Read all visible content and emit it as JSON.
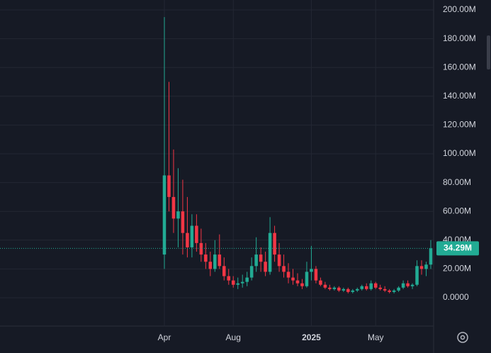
{
  "chart_data": {
    "type": "candlestick",
    "categories": [
      "Apr",
      null,
      null,
      null,
      null,
      null,
      null,
      null,
      null,
      null,
      null,
      null,
      null,
      null,
      null,
      "Aug",
      null,
      null,
      null,
      null,
      null,
      null,
      null,
      null,
      null,
      null,
      null,
      null,
      null,
      null,
      null,
      null,
      "2025",
      null,
      null,
      null,
      null,
      null,
      null,
      null,
      null,
      null,
      null,
      null,
      null,
      null,
      "May",
      null,
      null,
      null,
      null,
      null,
      null,
      null,
      null,
      null,
      null,
      null,
      null
    ],
    "open": [
      30,
      85,
      70,
      55,
      60,
      45,
      35,
      50,
      38,
      30,
      25,
      20,
      30,
      22,
      15,
      12,
      9,
      10,
      11,
      14,
      22,
      30,
      25,
      18,
      45,
      30,
      22,
      18,
      14,
      12,
      10,
      8,
      18,
      20,
      12,
      9,
      7,
      6,
      7,
      5,
      6,
      4,
      5,
      6,
      8,
      6,
      10,
      7,
      6,
      5,
      4,
      5,
      7,
      10,
      8,
      9,
      22,
      20,
      23
    ],
    "high": [
      195,
      150,
      103,
      90,
      82,
      70,
      58,
      58,
      48,
      38,
      32,
      40,
      44,
      28,
      20,
      15,
      14,
      16,
      18,
      28,
      42,
      35,
      32,
      56,
      50,
      38,
      30,
      24,
      20,
      17,
      13,
      25,
      36,
      22,
      14,
      11,
      9,
      8,
      8,
      7,
      7,
      6,
      7,
      9,
      10,
      12,
      11,
      9,
      8,
      6,
      6,
      8,
      12,
      12,
      10,
      26,
      26,
      25,
      40
    ],
    "low": [
      20,
      60,
      45,
      35,
      30,
      28,
      28,
      32,
      25,
      20,
      15,
      18,
      20,
      12,
      9,
      7,
      6,
      7,
      8,
      12,
      18,
      18,
      15,
      16,
      25,
      18,
      14,
      10,
      9,
      8,
      6,
      7,
      12,
      10,
      8,
      6,
      5,
      5,
      4,
      4,
      3,
      3,
      4,
      5,
      5,
      5,
      6,
      5,
      4,
      3,
      3,
      4,
      6,
      7,
      6,
      8,
      16,
      15,
      20
    ],
    "close": [
      85,
      70,
      55,
      60,
      45,
      35,
      50,
      38,
      30,
      25,
      20,
      30,
      22,
      15,
      12,
      9,
      10,
      11,
      14,
      22,
      30,
      25,
      18,
      45,
      30,
      22,
      18,
      14,
      12,
      10,
      8,
      18,
      20,
      12,
      9,
      7,
      6,
      7,
      5,
      6,
      4,
      5,
      6,
      8,
      6,
      10,
      7,
      6,
      5,
      4,
      5,
      7,
      10,
      8,
      9,
      22,
      20,
      23,
      34.29
    ],
    "up_color": "#22ab94",
    "down_color": "#f23645",
    "ylim": [
      -10,
      205
    ],
    "yticks": [
      {
        "value": 200,
        "label": "200.00M"
      },
      {
        "value": 180,
        "label": "180.00M"
      },
      {
        "value": 160,
        "label": "160.00M"
      },
      {
        "value": 140,
        "label": "140.00M"
      },
      {
        "value": 120,
        "label": "120.00M"
      },
      {
        "value": 100,
        "label": "100.00M"
      },
      {
        "value": 80,
        "label": "80.00M"
      },
      {
        "value": 60,
        "label": "60.00M"
      },
      {
        "value": 40,
        "label": "40.00M"
      },
      {
        "value": 20,
        "label": "20.00M"
      },
      {
        "value": 0,
        "label": "0.0000"
      }
    ],
    "last_label": "34.29M",
    "grid": true
  }
}
